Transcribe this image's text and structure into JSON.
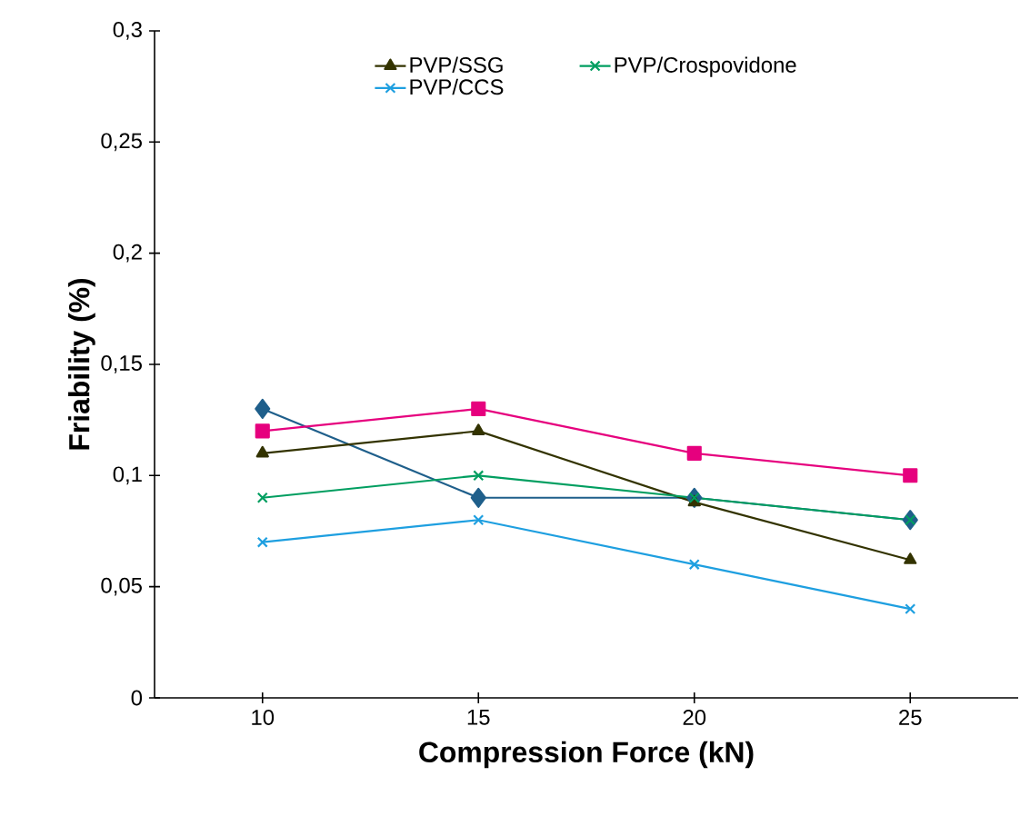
{
  "chart_data": {
    "type": "line",
    "xlabel": "Compression Force (kN)",
    "ylabel": "Friability (%)",
    "x": [
      10,
      15,
      20,
      25
    ],
    "xlim": [
      7.5,
      27.5
    ],
    "xticks": [
      10,
      15,
      20,
      25
    ],
    "ylim": [
      0,
      0.3
    ],
    "yticks": [
      0,
      {
        "value": 0.05,
        "label": "0,05"
      },
      {
        "value": 0.1,
        "label": "0,1"
      },
      {
        "value": 0.15,
        "label": "0,15"
      },
      {
        "value": 0.2,
        "label": "0,2"
      },
      {
        "value": 0.25,
        "label": "0,25"
      },
      {
        "value": 0.3,
        "label": "0,3"
      }
    ],
    "legend": "top",
    "line_style": "solid",
    "series": [
      {
        "color": "#1f5f8b",
        "marker": "diamond",
        "values": [
          0.13,
          0.09,
          0.09,
          0.08
        ]
      },
      {
        "color": "#e6007e",
        "marker": "square",
        "values": [
          0.12,
          0.13,
          0.11,
          0.1
        ]
      },
      {
        "name": "PVP/SSG",
        "color": "#333300",
        "marker": "triangle",
        "values": [
          0.11,
          0.12,
          0.088,
          0.062
        ]
      },
      {
        "name": "PVP/Crospovidone",
        "color": "#009e60",
        "marker": "cross",
        "values": [
          0.09,
          0.1,
          0.09,
          0.08
        ]
      },
      {
        "name": "PVP/CCS",
        "color": "#1e9fe0",
        "marker": "cross",
        "values": [
          0.07,
          0.08,
          0.06,
          0.04
        ]
      }
    ]
  }
}
